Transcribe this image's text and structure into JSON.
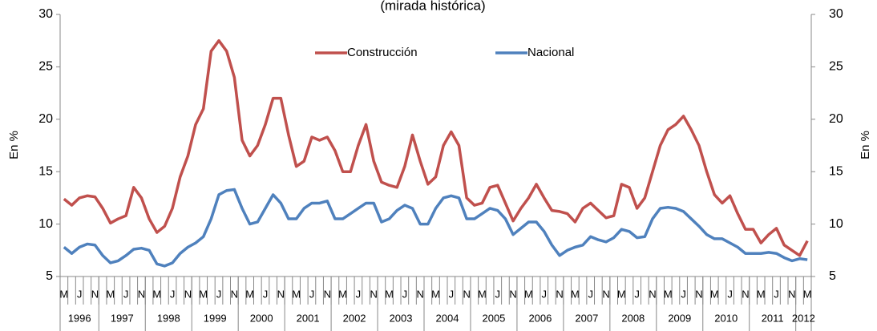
{
  "chart_data": {
    "type": "line",
    "title": "(mirada histórica)",
    "y_label": "En %",
    "y2_label": "En %",
    "categories": [
      "M",
      null,
      "J",
      null,
      "N",
      null,
      "M",
      null,
      "J",
      null,
      "N",
      null,
      "M",
      null,
      "J",
      null,
      "N",
      null,
      "M",
      null,
      "J",
      null,
      "N",
      null,
      "M",
      null,
      "J",
      null,
      "N",
      null,
      "M",
      null,
      "J",
      null,
      "N",
      null,
      "M",
      null,
      "J",
      null,
      "N",
      null,
      "M",
      null,
      "J",
      null,
      "N",
      null,
      "M",
      null,
      "J",
      null,
      "N",
      null,
      "M",
      null,
      "J",
      null,
      "N",
      null,
      "M",
      null,
      "J",
      null,
      "N",
      null,
      "M",
      null,
      "J",
      null,
      "N",
      null,
      "M",
      null,
      "J",
      null,
      "N",
      null,
      "M",
      null,
      "J",
      null,
      "N",
      null,
      "M",
      null,
      "J",
      null,
      "N",
      null,
      "M",
      null,
      "J",
      null,
      "N",
      null,
      "M"
    ],
    "groups": [
      {
        "label": "1996",
        "size": 5
      },
      {
        "label": "1997",
        "size": 6
      },
      {
        "label": "1998",
        "size": 6
      },
      {
        "label": "1999",
        "size": 6
      },
      {
        "label": "2000",
        "size": 6
      },
      {
        "label": "2001",
        "size": 6
      },
      {
        "label": "2002",
        "size": 6
      },
      {
        "label": "2003",
        "size": 6
      },
      {
        "label": "2004",
        "size": 6
      },
      {
        "label": "2005",
        "size": 6
      },
      {
        "label": "2006",
        "size": 6
      },
      {
        "label": "2007",
        "size": 6
      },
      {
        "label": "2008",
        "size": 6
      },
      {
        "label": "2009",
        "size": 6
      },
      {
        "label": "2010",
        "size": 6
      },
      {
        "label": "2011",
        "size": 6
      },
      {
        "label": "2012",
        "size": 2
      }
    ],
    "series": [
      {
        "name": "Construcción",
        "color": "#c0504d",
        "values": [
          12.4,
          11.8,
          12.5,
          12.7,
          12.6,
          11.5,
          10.1,
          10.5,
          10.8,
          13.5,
          12.5,
          10.5,
          9.2,
          9.8,
          11.5,
          14.5,
          16.5,
          19.5,
          21,
          26.5,
          27.5,
          26.5,
          24,
          18,
          16.5,
          17.5,
          19.5,
          22,
          22,
          18.5,
          15.5,
          16,
          18.3,
          18,
          18.3,
          17,
          15,
          15,
          17.5,
          19.5,
          16,
          14,
          13.7,
          13.5,
          15.5,
          18.5,
          16,
          13.8,
          14.5,
          17.5,
          18.8,
          17.5,
          12.5,
          11.8,
          12,
          13.5,
          13.7,
          12,
          10.3,
          11.5,
          12.5,
          13.8,
          12.5,
          11.3,
          11.2,
          11,
          10.2,
          11.5,
          12,
          11.3,
          10.6,
          10.8,
          13.8,
          13.5,
          11.5,
          12.5,
          15,
          17.5,
          19,
          19.5,
          20.3,
          19,
          17.5,
          15,
          12.8,
          12,
          12.7,
          11,
          9.5,
          9.5,
          8.2,
          9,
          9.6,
          8,
          7.5,
          7,
          8.4
        ]
      },
      {
        "name": "Nacional",
        "color": "#4f81bd",
        "values": [
          7.8,
          7.2,
          7.8,
          8.1,
          8.0,
          7,
          6.3,
          6.5,
          7,
          7.6,
          7.7,
          7.5,
          6.2,
          6,
          6.3,
          7.2,
          7.8,
          8.2,
          8.8,
          10.5,
          12.8,
          13.2,
          13.3,
          11.5,
          10,
          10.2,
          11.5,
          12.8,
          12,
          10.5,
          10.5,
          11.5,
          12,
          12,
          12.2,
          10.5,
          10.5,
          11,
          11.5,
          12,
          12,
          10.2,
          10.5,
          11.3,
          11.8,
          11.5,
          10,
          10,
          11.5,
          12.5,
          12.7,
          12.5,
          10.5,
          10.5,
          11,
          11.5,
          11.3,
          10.5,
          9,
          9.6,
          10.2,
          10.2,
          9.3,
          8,
          7,
          7.5,
          7.8,
          8,
          8.8,
          8.5,
          8.3,
          8.7,
          9.5,
          9.3,
          8.7,
          8.8,
          10.5,
          11.5,
          11.6,
          11.5,
          11.2,
          10.5,
          9.8,
          9,
          8.6,
          8.6,
          8.2,
          7.8,
          7.2,
          7.2,
          7.2,
          7.3,
          7.2,
          6.8,
          6.5,
          6.7,
          6.6
        ]
      }
    ],
    "ylim": [
      5,
      30
    ],
    "yticks": [
      5,
      10,
      15,
      20,
      25,
      30
    ],
    "y2lim": [
      5,
      30
    ],
    "y2ticks": [
      5,
      10,
      15,
      20,
      25,
      30
    ]
  }
}
